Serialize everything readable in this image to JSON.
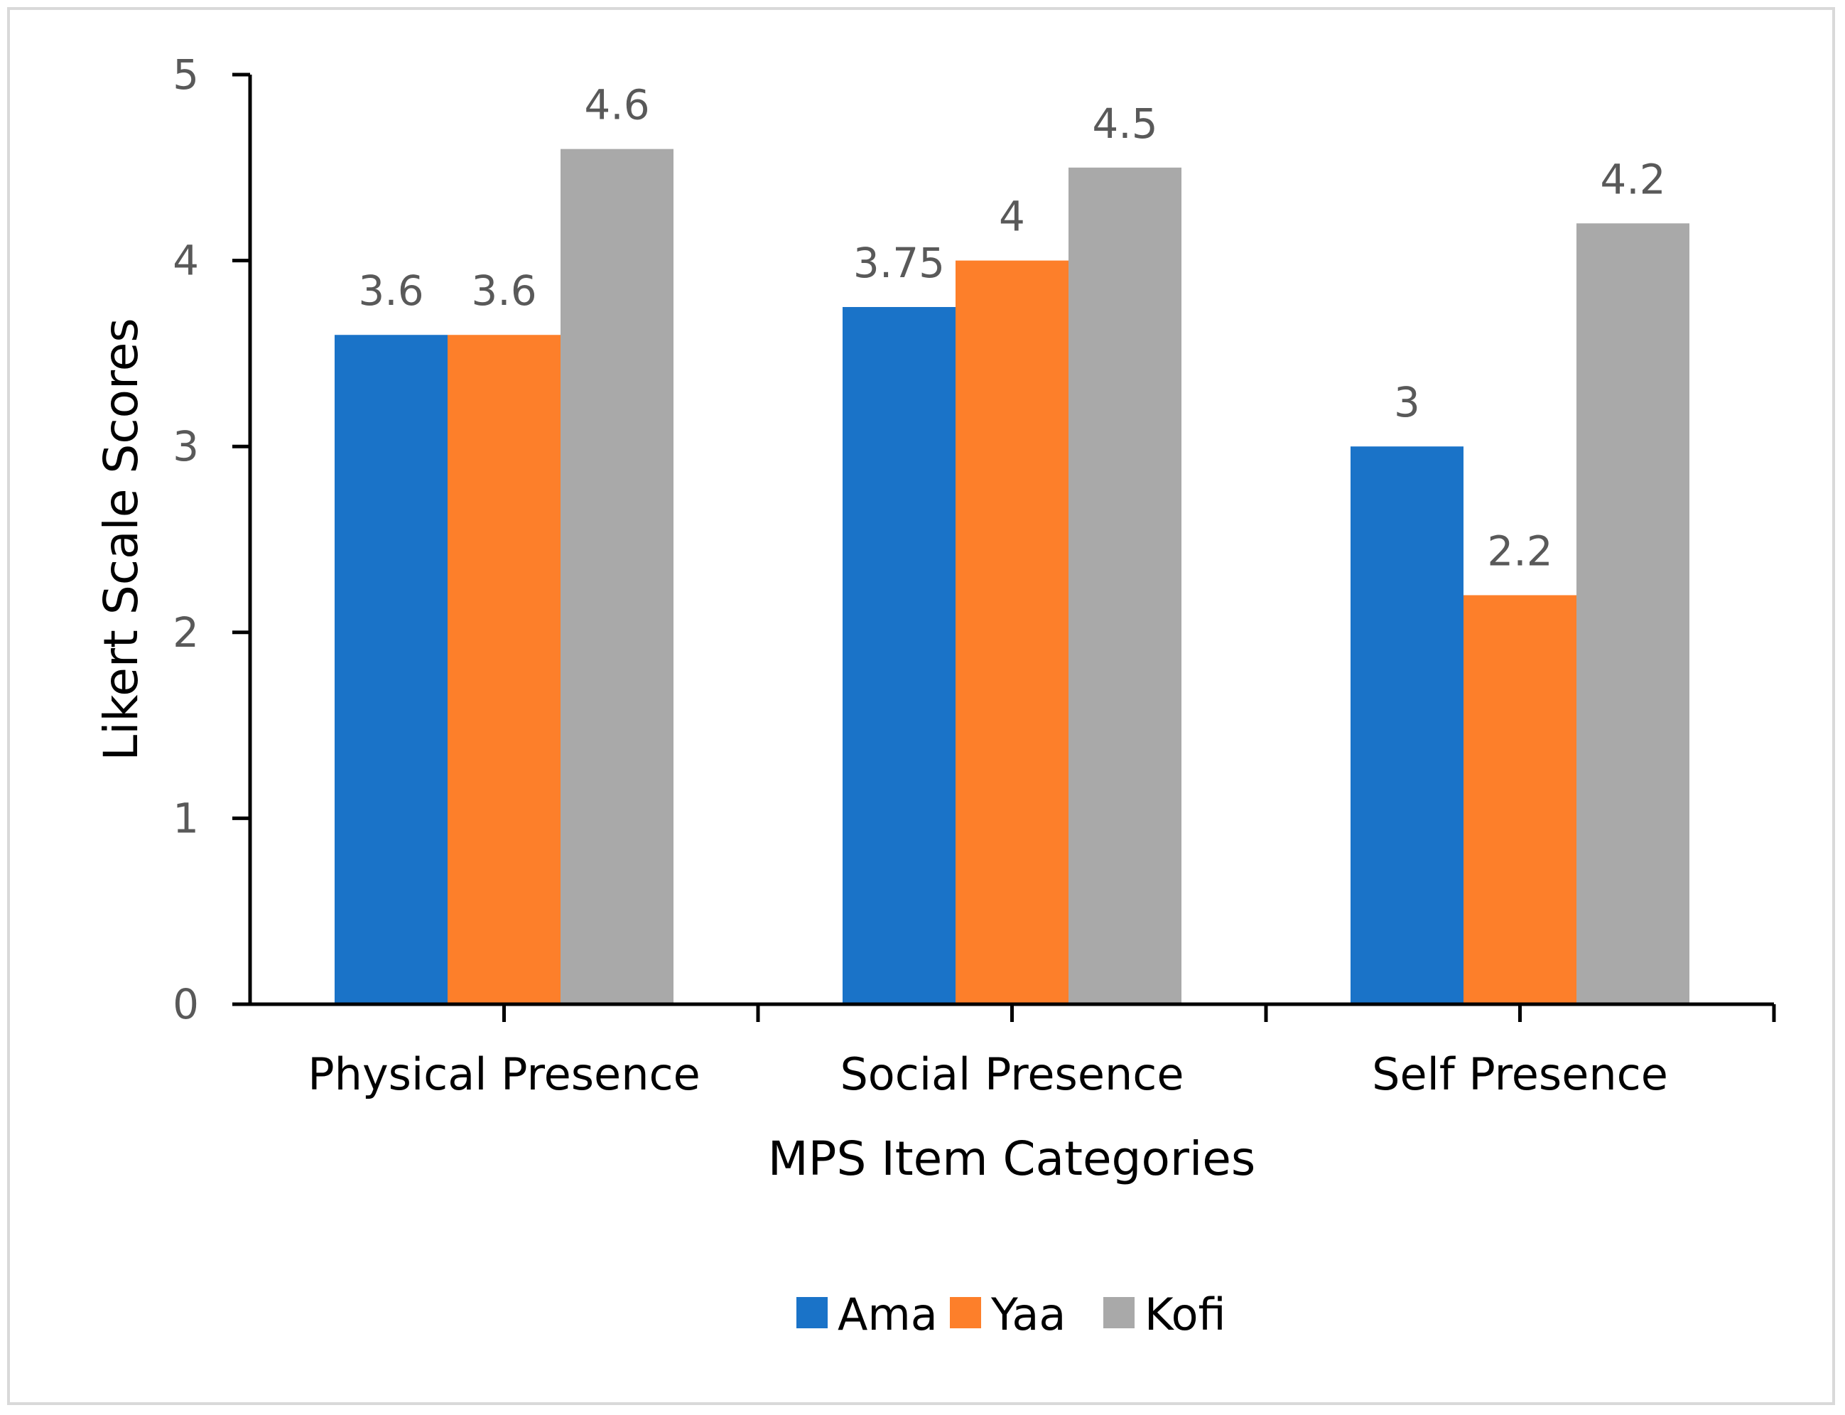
{
  "chart_data": {
    "type": "bar",
    "title": "",
    "xlabel": "MPS Item Categories",
    "ylabel": "Likert Scale Scores",
    "ylim": [
      0,
      5
    ],
    "yticks": [
      "0",
      "1",
      "2",
      "3",
      "4",
      "5"
    ],
    "categories": [
      "Physical Presence",
      "Social Presence",
      "Self Presence"
    ],
    "series": [
      {
        "name": "Ama",
        "color": "#1a73c8",
        "values": [
          3.6,
          3.75,
          3
        ],
        "labels": [
          "3.6",
          "3.75",
          "3"
        ]
      },
      {
        "name": "Yaa",
        "color": "#fd7f2a",
        "values": [
          3.6,
          4,
          2.2
        ],
        "labels": [
          "3.6",
          "4",
          "2.2"
        ]
      },
      {
        "name": "Kofi",
        "color": "#a9a9a9",
        "values": [
          4.6,
          4.5,
          4.2
        ],
        "labels": [
          "4.6",
          "4.5",
          "4.2"
        ]
      }
    ],
    "grid": false,
    "legend": "bottom-center"
  }
}
